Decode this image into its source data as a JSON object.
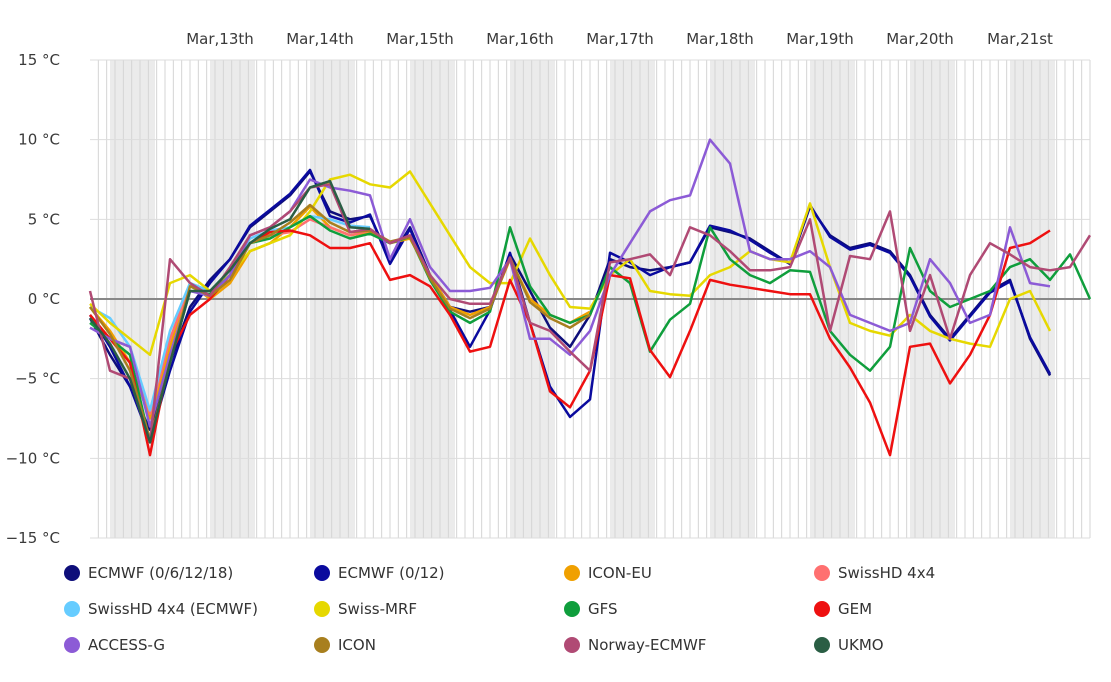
{
  "chart_data": {
    "type": "line",
    "ylim": [
      -15,
      15
    ],
    "y_ticks": [
      "15 °C",
      "10 °C",
      "5 °C",
      "0 °C",
      "−5 °C",
      "−10 °C",
      "−15 °C"
    ],
    "y_tick_values": [
      15,
      10,
      5,
      0,
      -5,
      -10,
      -15
    ],
    "x_range": [
      12.2,
      22.2
    ],
    "x_ticks": [
      "Mar,13th",
      "Mar,14th",
      "Mar,15th",
      "Mar,16th",
      "Mar,17th",
      "Mar,18th",
      "Mar,19th",
      "Mar,20th",
      "Mar,21st"
    ],
    "x_tick_values": [
      13.5,
      14.5,
      15.5,
      16.5,
      17.5,
      18.5,
      19.5,
      20.5,
      21.5
    ],
    "night_bands": [
      [
        12.4,
        12.85
      ],
      [
        13.4,
        13.85
      ],
      [
        14.4,
        14.85
      ],
      [
        15.4,
        15.85
      ],
      [
        16.4,
        16.85
      ],
      [
        17.4,
        17.85
      ],
      [
        18.4,
        18.85
      ],
      [
        19.4,
        19.85
      ],
      [
        20.4,
        20.85
      ],
      [
        21.4,
        21.85
      ]
    ],
    "grid": true,
    "legend_position": "bottom",
    "series": [
      {
        "name": "ECMWF (0/6/12/18)",
        "color": "#0e0e7a",
        "x": [
          12.2,
          12.4,
          12.6,
          12.8,
          13.0,
          13.2,
          13.4,
          13.6,
          13.8,
          14.0,
          14.2,
          14.4,
          14.6,
          14.8,
          15.0,
          15.2,
          15.4,
          15.6,
          15.8,
          16.0,
          16.2,
          16.4,
          16.6,
          16.8,
          17.0,
          17.2,
          17.4,
          17.6,
          17.8,
          18.0,
          18.2,
          18.4,
          18.6,
          18.8,
          19.0,
          19.2,
          19.4,
          19.6,
          19.8,
          20.0,
          20.2,
          20.4,
          20.6,
          20.8,
          21.0,
          21.2,
          21.4,
          21.6,
          21.8
        ],
        "y": [
          -1.2,
          -3.5,
          -5.5,
          -8.2,
          -4,
          -0.5,
          1.2,
          2.5,
          4.5,
          5.5,
          6.5,
          8,
          5.5,
          5,
          5.2,
          2.5,
          4.5,
          1.5,
          -0.5,
          -0.8,
          -0.5,
          2.8,
          0.5,
          -1.8,
          -3,
          -1,
          2.5,
          2,
          1.8,
          2,
          2.3,
          4.5,
          4.2,
          3.8,
          3,
          2.2,
          5.8,
          4,
          3.2,
          3.5,
          3,
          1.5,
          -1,
          -2.5,
          -1,
          0.5,
          1.2,
          -2.5,
          -4.8
        ]
      },
      {
        "name": "ECMWF (0/12)",
        "color": "#0a0a9e",
        "x": [
          12.2,
          12.4,
          12.6,
          12.8,
          13.0,
          13.2,
          13.4,
          13.6,
          13.8,
          14.0,
          14.2,
          14.4,
          14.6,
          14.8,
          15.0,
          15.2,
          15.4,
          15.6,
          15.8,
          16.0,
          16.2,
          16.4,
          16.6,
          16.8,
          17.0,
          17.2,
          17.4,
          17.6,
          17.8,
          18.0,
          18.2,
          18.4,
          18.6,
          18.8,
          19.0,
          19.2,
          19.4,
          19.6,
          19.8,
          20.0,
          20.2,
          20.4,
          20.6,
          20.8,
          21.0,
          21.2,
          21.4,
          21.6,
          21.8
        ],
        "y": [
          -1,
          -3,
          -5.5,
          -8.8,
          -4.5,
          -0.8,
          1,
          2.5,
          4.6,
          5.6,
          6.6,
          8.1,
          5.2,
          4.8,
          5.3,
          2.2,
          4.4,
          1.4,
          -0.7,
          -3,
          -0.7,
          2.9,
          -1.5,
          -5.5,
          -7.4,
          -6.3,
          2.9,
          2.3,
          1.5,
          2,
          2.3,
          4.6,
          4.3,
          3.7,
          2.9,
          2.2,
          5.9,
          3.9,
          3.1,
          3.4,
          2.9,
          1.4,
          -1.1,
          -2.6,
          -1.1,
          0.4,
          1.1,
          -2.4,
          -4.7
        ]
      },
      {
        "name": "ICON-EU",
        "color": "#f0a000",
        "x": [
          12.2,
          12.4,
          12.6,
          12.8,
          13.0,
          13.2,
          13.4,
          13.6,
          13.8,
          14.0,
          14.2,
          14.4,
          14.6,
          14.8,
          15.0,
          15.2,
          15.4,
          15.6,
          15.8,
          16.0,
          16.2,
          16.4,
          16.6,
          16.8,
          17.0,
          17.2
        ],
        "y": [
          -0.5,
          -2,
          -4,
          -7.5,
          -3,
          1,
          0,
          1,
          3,
          3.5,
          4.5,
          5.8,
          4.5,
          4,
          4.2,
          3.5,
          3.8,
          1.5,
          -0.5,
          -1,
          -0.5,
          2.5,
          0,
          -1,
          -1.5,
          -0.8
        ]
      },
      {
        "name": "SwissHD 4x4",
        "color": "#ff7070",
        "x": [
          12.2,
          12.4,
          12.6,
          12.8,
          13.0,
          13.2,
          13.4,
          13.6,
          13.8,
          14.0,
          14.2,
          14.4,
          14.6,
          14.8,
          15.0
        ],
        "y": [
          -1,
          -2.5,
          -3,
          -7.2,
          -2.5,
          0.8,
          0.5,
          1.5,
          3.5,
          4,
          4.2,
          5,
          4.5,
          4,
          4.3
        ]
      },
      {
        "name": "SwissHD 4x4 (ECMWF)",
        "color": "#66ccff",
        "x": [
          12.2,
          12.4,
          12.6,
          12.8,
          13.0,
          13.2,
          13.4,
          13.6,
          13.8,
          14.0,
          14.2,
          14.4,
          14.6,
          14.8,
          15.0
        ],
        "y": [
          -0.5,
          -1.2,
          -3,
          -7,
          -2,
          1,
          0.5,
          1.8,
          3.8,
          4.3,
          4.5,
          5.2,
          5,
          4.6,
          4.5
        ]
      },
      {
        "name": "Swiss-MRF",
        "color": "#e6d800",
        "x": [
          12.2,
          12.4,
          12.6,
          12.8,
          13.0,
          13.2,
          13.4,
          13.6,
          13.8,
          14.0,
          14.2,
          14.4,
          14.6,
          14.8,
          15.0,
          15.2,
          15.4,
          15.6,
          15.8,
          16.0,
          16.2,
          16.4,
          16.6,
          16.8,
          17.0,
          17.2,
          17.4,
          17.6,
          17.8,
          18.0,
          18.2,
          18.4,
          18.6,
          18.8,
          19.0,
          19.2,
          19.4,
          19.6,
          19.8,
          20.0,
          20.2,
          20.4,
          20.6,
          20.8,
          21.0,
          21.2,
          21.4,
          21.6,
          21.8
        ],
        "y": [
          -0.3,
          -1.5,
          -2.5,
          -3.5,
          1,
          1.5,
          0.5,
          1.5,
          3,
          3.5,
          4,
          5.5,
          7.5,
          7.8,
          7.2,
          7,
          8,
          6,
          4,
          2,
          1,
          1,
          3.8,
          1.5,
          -0.5,
          -0.6,
          1.5,
          2.5,
          0.5,
          0.3,
          0.2,
          1.5,
          2,
          3,
          2.5,
          2.3,
          6,
          2,
          -1.5,
          -2,
          -2.3,
          -1,
          -2,
          -2.5,
          -2.8,
          -3,
          0,
          0.5,
          -2
        ]
      },
      {
        "name": "GFS",
        "color": "#0f9e3c",
        "x": [
          12.2,
          12.4,
          12.6,
          12.8,
          13.0,
          13.2,
          13.4,
          13.6,
          13.8,
          14.0,
          14.2,
          14.4,
          14.6,
          14.8,
          15.0,
          15.2,
          15.4,
          15.6,
          15.8,
          16.0,
          16.2,
          16.4,
          16.6,
          16.8,
          17.0,
          17.2,
          17.4,
          17.6,
          17.8,
          18.0,
          18.2,
          18.4,
          18.6,
          18.8,
          19.0,
          19.2,
          19.4,
          19.6,
          19.8,
          20.0,
          20.2,
          20.4,
          20.6,
          20.8,
          21.0,
          21.2,
          21.4,
          21.6,
          21.8,
          22.0,
          22.2
        ],
        "y": [
          -1.5,
          -2.5,
          -3.5,
          -9,
          -4,
          0.5,
          0.3,
          1.5,
          3.5,
          3.8,
          4.5,
          5.2,
          4.3,
          3.8,
          4.1,
          3.5,
          3.9,
          1.2,
          -0.8,
          -1.5,
          -0.8,
          4.5,
          0.8,
          -1,
          -1.5,
          -1,
          2,
          1,
          -3.3,
          -1.3,
          -0.3,
          4.5,
          2.5,
          1.5,
          1,
          1.8,
          1.7,
          -2,
          -3.5,
          -4.5,
          -3,
          3.2,
          0.5,
          -0.5,
          0,
          0.5,
          2,
          2.5,
          1.2,
          2.8,
          0
        ]
      },
      {
        "name": "GEM",
        "color": "#ee1010",
        "x": [
          12.2,
          12.4,
          12.6,
          12.8,
          13.0,
          13.2,
          13.4,
          13.6,
          13.8,
          14.0,
          14.2,
          14.4,
          14.6,
          14.8,
          15.0,
          15.2,
          15.4,
          15.6,
          15.8,
          16.0,
          16.2,
          16.4,
          16.6,
          16.8,
          17.0,
          17.2,
          17.4,
          17.6,
          17.8,
          18.0,
          18.2,
          18.4,
          18.6,
          18.8,
          19.0,
          19.2,
          19.4,
          19.6,
          19.8,
          20.0,
          20.2,
          20.4,
          20.6,
          20.8,
          21.0,
          21.2,
          21.4,
          21.6,
          21.8
        ],
        "y": [
          -1,
          -2.5,
          -4,
          -9.8,
          -3.5,
          -1,
          0,
          1.5,
          3.5,
          4.2,
          4.3,
          4,
          3.2,
          3.2,
          3.5,
          1.2,
          1.5,
          0.8,
          -1,
          -3.3,
          -3,
          1.2,
          -1.5,
          -5.8,
          -6.8,
          -4.5,
          1.5,
          1.3,
          -3.2,
          -4.9,
          -2,
          1.2,
          0.9,
          0.7,
          0.5,
          0.3,
          0.3,
          -2.5,
          -4.3,
          -6.5,
          -9.8,
          -3,
          -2.8,
          -5.3,
          -3.5,
          -1,
          3.2,
          3.5,
          4.3
        ]
      },
      {
        "name": "ACCESS-G",
        "color": "#8c5bd6",
        "x": [
          12.2,
          12.4,
          12.6,
          12.8,
          13.0,
          13.2,
          13.4,
          13.6,
          13.8,
          14.0,
          14.2,
          14.4,
          14.6,
          14.8,
          15.0,
          15.2,
          15.4,
          15.6,
          15.8,
          16.0,
          16.2,
          16.4,
          16.6,
          16.8,
          17.0,
          17.2,
          17.4,
          17.6,
          17.8,
          18.0,
          18.2,
          18.4,
          18.6,
          18.8,
          19.0,
          19.2,
          19.4,
          19.6,
          19.8,
          20.0,
          20.2,
          20.4,
          20.6,
          20.8,
          21.0,
          21.2,
          21.4,
          21.6,
          21.8
        ],
        "y": [
          -1.8,
          -2.5,
          -3,
          -8,
          -3.5,
          0.5,
          0.2,
          1.5,
          4,
          4.5,
          5.5,
          7.5,
          7,
          6.8,
          6.5,
          2.5,
          5,
          2,
          0.5,
          0.5,
          0.7,
          2.5,
          -2.5,
          -2.5,
          -3.5,
          -2,
          1.5,
          3.5,
          5.5,
          6.2,
          6.5,
          10,
          8.5,
          3,
          2.5,
          2.5,
          3,
          2,
          -1,
          -1.5,
          -2,
          -1.5,
          2.5,
          1,
          -1.5,
          -1,
          4.5,
          1,
          0.8
        ]
      },
      {
        "name": "ICON",
        "color": "#a87f1e",
        "x": [
          12.2,
          12.4,
          12.6,
          12.8,
          13.0,
          13.2,
          13.4,
          13.6,
          13.8,
          14.0,
          14.2,
          14.4,
          14.6,
          14.8,
          15.0,
          15.2,
          15.4,
          15.6,
          15.8,
          16.0,
          16.2,
          16.4,
          16.6,
          16.8,
          17.0,
          17.2
        ],
        "y": [
          -0.5,
          -2.2,
          -4.5,
          -8.8,
          -4,
          0.8,
          0.2,
          1.2,
          3.5,
          4,
          4.8,
          5.9,
          4.8,
          4.2,
          4.3,
          3.6,
          3.9,
          1.3,
          -0.6,
          -1.2,
          -0.6,
          2.6,
          -0.2,
          -1.2,
          -1.8,
          -1
        ]
      },
      {
        "name": "Norway-ECMWF",
        "color": "#b04a74",
        "x": [
          12.2,
          12.4,
          12.6,
          12.8,
          13.0,
          13.2,
          13.4,
          13.6,
          13.8,
          14.0,
          14.2,
          14.4,
          14.6,
          14.8,
          15.0,
          15.2,
          15.4,
          15.6,
          15.8,
          16.0,
          16.2,
          16.4,
          16.6,
          16.8,
          17.0,
          17.2,
          17.4,
          17.6,
          17.8,
          18.0,
          18.2,
          18.4,
          18.6,
          18.8,
          19.0,
          19.2,
          19.4,
          19.6,
          19.8,
          20.0,
          20.2,
          20.4,
          20.6,
          20.8,
          21.0,
          21.2,
          21.4,
          21.6,
          21.8,
          22.0,
          22.2
        ],
        "y": [
          0.5,
          -4.5,
          -5,
          -9,
          2.5,
          1,
          0.2,
          2,
          4,
          4.5,
          5.5,
          7,
          7.2,
          4.2,
          4.4,
          3.5,
          4,
          1.5,
          0,
          -0.3,
          -0.3,
          2.6,
          -1.5,
          -2,
          -3.3,
          -4.5,
          2.3,
          2.5,
          2.8,
          1.5,
          4.5,
          4,
          3,
          1.8,
          1.8,
          2,
          5,
          -2,
          2.7,
          2.5,
          5.5,
          -2,
          1.5,
          -2.5,
          1.5,
          3.5,
          2.8,
          2,
          1.8,
          2,
          4
        ]
      },
      {
        "name": "UKMO",
        "color": "#2a5e44",
        "x": [
          12.2,
          12.4,
          12.6,
          12.8,
          13.0,
          13.2,
          13.4,
          13.6,
          13.8,
          14.0,
          14.2,
          14.4,
          14.6,
          14.8,
          15.0
        ],
        "y": [
          -1.2,
          -2.8,
          -5,
          -9,
          -4,
          0.5,
          0.5,
          1.8,
          3.5,
          4.4,
          5,
          7,
          7.4,
          4.5,
          4.4
        ]
      }
    ]
  }
}
